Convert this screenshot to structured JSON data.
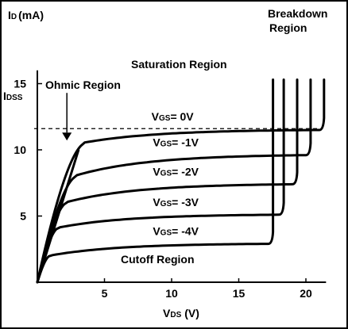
{
  "chart_data": {
    "type": "line",
    "axes": {
      "y_label_main": "I",
      "y_label_sub": "D",
      "y_label_unit": "(mA)",
      "x_label_main": "V",
      "x_label_sub": "DS",
      "x_label_unit": "(V)",
      "xlim": [
        0,
        21.5
      ],
      "ylim": [
        0,
        16
      ],
      "x_ticks": [
        5,
        10,
        15,
        20
      ],
      "y_ticks": [
        5,
        10,
        15
      ],
      "idss_main": "I",
      "idss_sub": "DSS",
      "idss_value": 11.6
    },
    "regions": {
      "ohmic": "Ohmic Region",
      "saturation": "Saturation Region",
      "cutoff": "Cutoff Region",
      "breakdown_line1": "Breakdown",
      "breakdown_line2": "Region"
    },
    "series": [
      {
        "name_main": "V",
        "name_sub": "GS",
        "name_value": "= 0V",
        "knee": 3.4,
        "sat": 10.5,
        "flat": 11.5,
        "bd": 21.0
      },
      {
        "name_main": "V",
        "name_sub": "GS",
        "name_value": "= -1V",
        "knee": 2.8,
        "sat": 8.0,
        "flat": 9.6,
        "bd": 20.0
      },
      {
        "name_main": "V",
        "name_sub": "GS",
        "name_value": "= -2V",
        "knee": 2.1,
        "sat": 6.0,
        "flat": 7.4,
        "bd": 19.0
      },
      {
        "name_main": "V",
        "name_sub": "GS",
        "name_value": "= -3V",
        "knee": 1.5,
        "sat": 4.1,
        "flat": 5.1,
        "bd": 18.0
      },
      {
        "name_main": "V",
        "name_sub": "GS",
        "name_value": "= -4V",
        "knee": 0.9,
        "sat": 2.0,
        "flat": 2.9,
        "bd": 17.2
      }
    ],
    "breakdown_top": 15.3,
    "colors": {
      "background": "#ffffff",
      "frame": "#000000",
      "curves": "#000000"
    }
  }
}
